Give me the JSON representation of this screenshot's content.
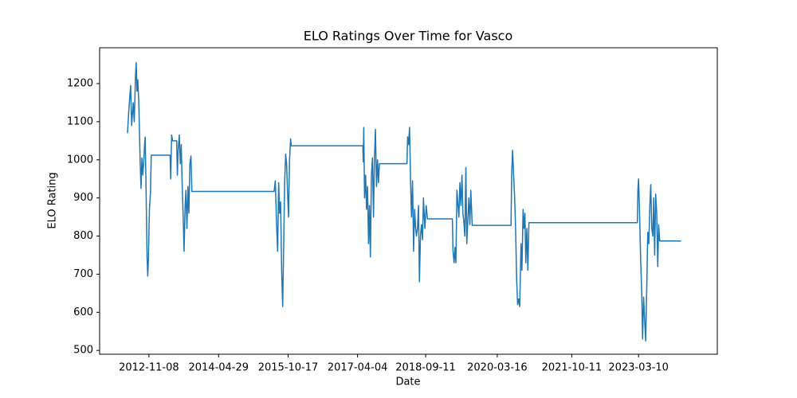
{
  "chart_data": {
    "type": "line",
    "title": "ELO Ratings Over Time for Vasco",
    "xlabel": "Date",
    "ylabel": "ELO Rating",
    "x": [
      "2012-05-27",
      "2012-06-05",
      "2012-06-20",
      "2012-06-28",
      "2012-07-10",
      "2012-07-18",
      "2012-07-28",
      "2012-08-02",
      "2012-08-08",
      "2012-08-14",
      "2012-08-22",
      "2012-09-01",
      "2012-09-08",
      "2012-09-15",
      "2012-09-22",
      "2012-09-30",
      "2012-10-05",
      "2012-10-10",
      "2012-10-16",
      "2012-10-20",
      "2012-10-25",
      "2012-10-30",
      "2012-11-04",
      "2012-11-12",
      "2012-11-20",
      "2012-11-26",
      "2013-04-20",
      "2013-04-25",
      "2013-05-02",
      "2013-05-10",
      "2013-06-10",
      "2013-06-15",
      "2013-06-22",
      "2013-06-30",
      "2013-07-08",
      "2013-07-15",
      "2013-07-22",
      "2013-07-30",
      "2013-08-06",
      "2013-08-14",
      "2013-08-20",
      "2013-08-28",
      "2013-09-05",
      "2013-09-12",
      "2013-09-20",
      "2013-09-28",
      "2013-10-05",
      "2015-07-01",
      "2015-07-10",
      "2015-07-20",
      "2015-07-28",
      "2015-08-05",
      "2015-08-12",
      "2015-08-20",
      "2015-08-28",
      "2015-09-05",
      "2015-09-12",
      "2015-09-20",
      "2015-09-28",
      "2015-10-05",
      "2015-10-12",
      "2015-10-20",
      "2015-10-28",
      "2015-11-05",
      "2015-11-10",
      "2017-05-15",
      "2017-05-18",
      "2017-05-22",
      "2017-05-28",
      "2017-06-05",
      "2017-06-12",
      "2017-06-20",
      "2017-06-28",
      "2017-07-05",
      "2017-07-12",
      "2017-07-20",
      "2017-07-28",
      "2017-08-05",
      "2017-08-12",
      "2017-08-20",
      "2017-08-28",
      "2017-09-05",
      "2017-09-12",
      "2017-09-20",
      "2018-04-20",
      "2018-04-25",
      "2018-05-02",
      "2018-05-10",
      "2018-05-18",
      "2018-05-25",
      "2018-06-02",
      "2018-06-10",
      "2018-06-18",
      "2018-06-25",
      "2018-07-02",
      "2018-07-10",
      "2018-07-18",
      "2018-07-25",
      "2018-08-02",
      "2018-08-10",
      "2018-08-18",
      "2018-08-25",
      "2018-09-05",
      "2018-09-15",
      "2018-09-25",
      "2019-04-05",
      "2019-04-10",
      "2019-04-18",
      "2019-04-25",
      "2019-05-02",
      "2019-05-10",
      "2019-05-25",
      "2019-06-02",
      "2019-06-10",
      "2019-06-18",
      "2019-06-25",
      "2019-07-02",
      "2019-07-10",
      "2019-07-18",
      "2019-07-25",
      "2019-08-02",
      "2019-08-10",
      "2019-08-18",
      "2019-08-25",
      "2019-09-05",
      "2020-06-30",
      "2020-07-05",
      "2020-07-12",
      "2020-07-20",
      "2020-07-28",
      "2020-08-05",
      "2020-08-12",
      "2020-08-20",
      "2020-08-28",
      "2020-09-05",
      "2020-09-15",
      "2020-09-22",
      "2020-10-01",
      "2020-10-08",
      "2020-10-15",
      "2020-10-22",
      "2020-10-30",
      "2020-11-07",
      "2020-11-15",
      "2023-03-01",
      "2023-03-05",
      "2023-03-10",
      "2023-03-18",
      "2023-03-26",
      "2023-04-03",
      "2023-04-10",
      "2023-04-18",
      "2023-04-26",
      "2023-05-04",
      "2023-05-12",
      "2023-05-20",
      "2023-05-28",
      "2023-06-05",
      "2023-06-12",
      "2023-06-20",
      "2023-06-28",
      "2023-07-05",
      "2023-07-12",
      "2023-07-20",
      "2023-07-28",
      "2023-08-05",
      "2023-08-12",
      "2023-08-20",
      "2024-02-01"
    ],
    "series": [
      {
        "color": "#1f77b4",
        "values": [
          1070,
          1125,
          1195,
          1090,
          1150,
          1100,
          1225,
          1255,
          1180,
          1210,
          1150,
          1000,
          925,
          1005,
          960,
          1000,
          1035,
          1060,
          950,
          850,
          740,
          695,
          740,
          870,
          915,
          1012,
          1012,
          950,
          1065,
          1050,
          1050,
          960,
          1030,
          1065,
          990,
          1040,
          940,
          850,
          760,
          880,
          920,
          820,
          930,
          860,
          990,
          1010,
          917,
          917,
          945,
          830,
          760,
          940,
          860,
          890,
          710,
          615,
          760,
          940,
          1015,
          990,
          920,
          850,
          1000,
          1055,
          1037,
          1037,
          995,
          1085,
          900,
          960,
          870,
          930,
          780,
          880,
          745,
          960,
          1005,
          850,
          1000,
          1080,
          930,
          1000,
          940,
          990,
          990,
          1060,
          1040,
          1085,
          940,
          850,
          945,
          760,
          870,
          825,
          800,
          820,
          880,
          680,
          800,
          830,
          790,
          900,
          820,
          880,
          845,
          845,
          760,
          730,
          770,
          730,
          920,
          850,
          940,
          880,
          960,
          860,
          840,
          800,
          980,
          780,
          840,
          900,
          830,
          920,
          828,
          828,
          960,
          1025,
          960,
          900,
          810,
          690,
          620,
          635,
          615,
          780,
          710,
          870,
          820,
          860,
          730,
          820,
          710,
          835,
          835,
          920,
          950,
          860,
          740,
          660,
          530,
          640,
          580,
          525,
          660,
          810,
          780,
          880,
          935,
          820,
          800,
          900,
          750,
          910,
          860,
          720,
          830,
          787,
          787
        ]
      }
    ],
    "xlim": [
      "2011-10-25",
      "2024-11-06"
    ],
    "xticks": [
      "2012-11-08",
      "2014-04-29",
      "2015-10-17",
      "2017-04-04",
      "2018-09-11",
      "2020-03-16",
      "2021-10-11",
      "2023-03-10"
    ],
    "ylim": [
      490,
      1294
    ],
    "yticks": [
      500,
      600,
      700,
      800,
      900,
      1000,
      1100,
      1200
    ]
  }
}
